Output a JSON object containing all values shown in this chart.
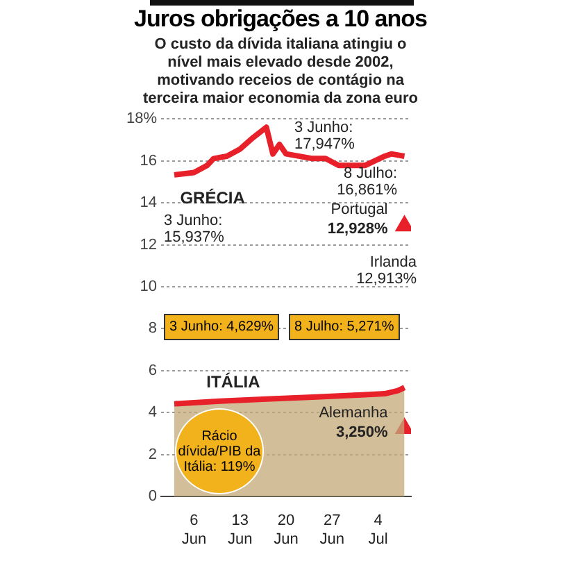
{
  "chart_data": {
    "type": "line",
    "title": "Juros obrigações a 10 anos",
    "subtitle": "O custo da dívida italiana atingiu o nível mais elevado desde 2002, motivando receios de contágio na terceira maior economia da zona euro",
    "xlim": [
      "--06-01",
      "--07-09"
    ],
    "xticks": [
      {
        "value": "--06-06",
        "label": "6 Jun"
      },
      {
        "value": "--06-13",
        "label": "13 Jun"
      },
      {
        "value": "--06-20",
        "label": "20 Jun"
      },
      {
        "value": "--06-27",
        "label": "27 Jun"
      },
      {
        "value": "--07-04",
        "label": "4 Jul"
      }
    ],
    "ylim": [
      0,
      18
    ],
    "yticks": [
      0,
      2,
      4,
      6,
      8,
      10,
      12,
      14,
      16,
      {
        "value": 18,
        "label": "18%"
      }
    ],
    "grid": "y",
    "legend": false,
    "marker": "none",
    "series": [
      {
        "name": "GRÉCIA",
        "color": "#e8202a",
        "x": [
          "--06-03",
          "--06-06",
          "--06-08",
          "--06-09",
          "--06-11",
          "--06-13",
          "--06-15",
          "--06-17",
          "--06-18",
          "--06-19",
          "--06-20",
          "--06-24",
          "--06-26",
          "--06-28",
          "--07-02",
          "--07-05",
          "--07-06",
          "--07-08"
        ],
        "values": [
          15.33,
          15.44,
          15.78,
          16.11,
          16.22,
          16.56,
          17.11,
          17.6,
          16.33,
          16.78,
          16.33,
          16.11,
          16.11,
          15.78,
          15.78,
          16.22,
          16.33,
          16.22
        ]
      },
      {
        "name": "ITÁLIA",
        "type": "area",
        "color": "#e8202a",
        "x": [
          "--06-03",
          "--06-10",
          "--06-17",
          "--06-24",
          "--07-01",
          "--07-05",
          "--07-07",
          "--07-08"
        ],
        "values": [
          4.42,
          4.55,
          4.65,
          4.74,
          4.84,
          4.9,
          5.05,
          5.2
        ]
      },
      {
        "type": "scatter",
        "marker": "triangle",
        "color": "#e8202a",
        "x": [
          "--07-08"
        ],
        "values": [
          12.9
        ]
      },
      {
        "type": "scatter",
        "marker": "triangle",
        "color": "#e8202a",
        "x": [
          "--07-08"
        ],
        "values": [
          3.25
        ]
      }
    ],
    "annotations": [
      "3 Junho: 17,947%",
      "8 Julho: 16,861%",
      "3 Junho: 15,937%",
      "Irlanda 12,913%",
      "3 Junho: 4,629%",
      "8 Julho: 5,271%",
      "Rácio dívida/PIB da Itália: 119%",
      {
        "text": "Portugal 12,928%",
        "x": "--07-08",
        "y": 12.928
      },
      {
        "text": "Alemanha 3,250%",
        "x": "--07-08",
        "y": 3.25
      }
    ]
  }
}
